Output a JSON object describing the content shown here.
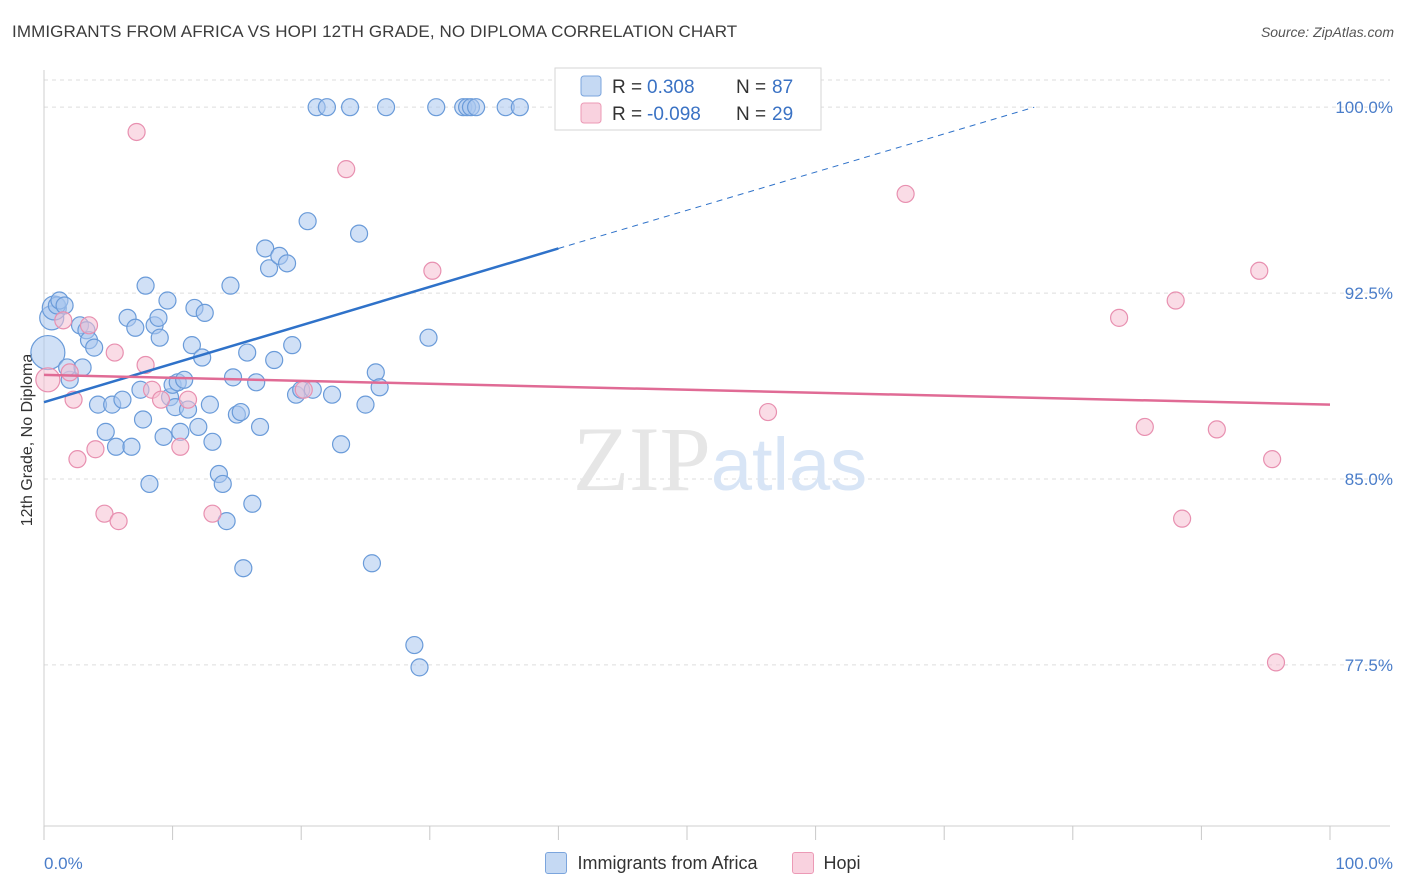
{
  "header": {
    "title": "IMMIGRANTS FROM AFRICA VS HOPI 12TH GRADE, NO DIPLOMA CORRELATION CHART",
    "source": "Source: ZipAtlas.com"
  },
  "watermark": {
    "part1": "ZIP",
    "part2": "atlas"
  },
  "legend_top": {
    "rows": [
      {
        "r_label": "R =",
        "r_value": "0.308",
        "n_label": "N =",
        "n_value": "87",
        "color": "#5b8fd6"
      },
      {
        "r_label": "R =",
        "r_value": "-0.098",
        "n_label": "N =",
        "n_value": "29",
        "color": "#ea80a6"
      }
    ]
  },
  "legend_bottom": {
    "items": [
      {
        "label": "Immigrants from Africa",
        "color": "#5b8fd6"
      },
      {
        "label": "Hopi",
        "color": "#ea80a6"
      }
    ]
  },
  "colors": {
    "blue_fill": "#a9c6ee",
    "blue_stroke": "#6a9bd9",
    "blue_line": "#2f72c9",
    "pink_fill": "#f6c0d2",
    "pink_stroke": "#e890b0",
    "pink_line": "#e06b95",
    "tick_label": "#4a7dc9",
    "grid": "#dddddd"
  },
  "chart_data": {
    "type": "scatter",
    "title": "IMMIGRANTS FROM AFRICA VS HOPI 12TH GRADE, NO DIPLOMA CORRELATION CHART",
    "ylabel": "12th Grade, No Diploma",
    "xlabel": "",
    "xlim": [
      0,
      100
    ],
    "ylim": [
      71.0,
      101.5
    ],
    "x_tick_labels": [
      {
        "value": 0,
        "label": "0.0%"
      },
      {
        "value": 100,
        "label": "100.0%"
      }
    ],
    "y_ticks": [
      {
        "value": 100.0,
        "label": "100.0%"
      },
      {
        "value": 92.5,
        "label": "92.5%"
      },
      {
        "value": 85.0,
        "label": "85.0%"
      },
      {
        "value": 77.5,
        "label": "77.5%"
      }
    ],
    "grid": true,
    "legend_position": "top-center",
    "series": [
      {
        "name": "Immigrants from Africa",
        "r": 0.308,
        "n": 87,
        "trend": {
          "x0": 0,
          "y0": 88.1,
          "x1": 40,
          "y1": 94.3,
          "dashed_to_x": 77,
          "dashed_to_y": 100.0
        },
        "points": [
          [
            0.3,
            90.1,
            3
          ],
          [
            0.6,
            91.5,
            2
          ],
          [
            0.8,
            91.9,
            2
          ],
          [
            1.0,
            92.0,
            1
          ],
          [
            1.2,
            92.2,
            1
          ],
          [
            1.6,
            92.0,
            1
          ],
          [
            2.0,
            89.0,
            1
          ],
          [
            1.8,
            89.5,
            1
          ],
          [
            2.8,
            91.2,
            1
          ],
          [
            3.0,
            89.5,
            1
          ],
          [
            3.3,
            91.0,
            1
          ],
          [
            3.5,
            90.6,
            1
          ],
          [
            3.9,
            90.3,
            1
          ],
          [
            4.2,
            88.0,
            1
          ],
          [
            4.8,
            86.9,
            1
          ],
          [
            5.3,
            88.0,
            1
          ],
          [
            5.6,
            86.3,
            1
          ],
          [
            6.1,
            88.2,
            1
          ],
          [
            6.5,
            91.5,
            1
          ],
          [
            6.8,
            86.3,
            1
          ],
          [
            7.1,
            91.1,
            1
          ],
          [
            7.5,
            88.6,
            1
          ],
          [
            7.7,
            87.4,
            1
          ],
          [
            7.9,
            92.8,
            1
          ],
          [
            8.2,
            84.8,
            1
          ],
          [
            8.6,
            91.2,
            1
          ],
          [
            8.9,
            91.5,
            1
          ],
          [
            9.0,
            90.7,
            1
          ],
          [
            9.3,
            86.7,
            1
          ],
          [
            9.6,
            92.2,
            1
          ],
          [
            9.8,
            88.3,
            1
          ],
          [
            10.0,
            88.8,
            1
          ],
          [
            10.2,
            87.9,
            1
          ],
          [
            10.4,
            88.9,
            1
          ],
          [
            10.6,
            86.9,
            1
          ],
          [
            10.9,
            89.0,
            1
          ],
          [
            11.2,
            87.8,
            1
          ],
          [
            11.5,
            90.4,
            1
          ],
          [
            11.7,
            91.9,
            1
          ],
          [
            12.0,
            87.1,
            1
          ],
          [
            12.3,
            89.9,
            1
          ],
          [
            12.5,
            91.7,
            1
          ],
          [
            12.9,
            88.0,
            1
          ],
          [
            13.1,
            86.5,
            1
          ],
          [
            13.6,
            85.2,
            1
          ],
          [
            13.9,
            84.8,
            1
          ],
          [
            14.2,
            83.3,
            1
          ],
          [
            14.5,
            92.8,
            1
          ],
          [
            14.7,
            89.1,
            1
          ],
          [
            15.0,
            87.6,
            1
          ],
          [
            15.3,
            87.7,
            1
          ],
          [
            15.5,
            81.4,
            1
          ],
          [
            15.8,
            90.1,
            1
          ],
          [
            16.2,
            84.0,
            1
          ],
          [
            16.5,
            88.9,
            1
          ],
          [
            16.8,
            87.1,
            1
          ],
          [
            17.2,
            94.3,
            1
          ],
          [
            17.5,
            93.5,
            1
          ],
          [
            17.9,
            89.8,
            1
          ],
          [
            18.3,
            94.0,
            1
          ],
          [
            18.9,
            93.7,
            1
          ],
          [
            19.3,
            90.4,
            1
          ],
          [
            19.6,
            88.4,
            1
          ],
          [
            20.0,
            88.6,
            1
          ],
          [
            20.5,
            95.4,
            1
          ],
          [
            20.9,
            88.6,
            1
          ],
          [
            21.2,
            100.0,
            1
          ],
          [
            22.0,
            100.0,
            1
          ],
          [
            22.4,
            88.4,
            1
          ],
          [
            23.1,
            86.4,
            1
          ],
          [
            23.8,
            100.0,
            1
          ],
          [
            24.5,
            94.9,
            1
          ],
          [
            25.0,
            88.0,
            1
          ],
          [
            25.5,
            81.6,
            1
          ],
          [
            25.8,
            89.3,
            1
          ],
          [
            26.1,
            88.7,
            1
          ],
          [
            26.6,
            100.0,
            1
          ],
          [
            28.8,
            78.3,
            1
          ],
          [
            29.2,
            77.4,
            1
          ],
          [
            29.9,
            90.7,
            1
          ],
          [
            30.5,
            100.0,
            1
          ],
          [
            32.6,
            100.0,
            1
          ],
          [
            32.9,
            100.0,
            1
          ],
          [
            33.2,
            100.0,
            1
          ],
          [
            33.6,
            100.0,
            1
          ],
          [
            35.9,
            100.0,
            1
          ],
          [
            37.0,
            100.0,
            1
          ]
        ]
      },
      {
        "name": "Hopi",
        "r": -0.098,
        "n": 29,
        "trend": {
          "x0": 0,
          "y0": 89.2,
          "x1": 100,
          "y1": 88.0
        },
        "points": [
          [
            0.3,
            89.0,
            2
          ],
          [
            1.5,
            91.4,
            1
          ],
          [
            2.0,
            89.3,
            1
          ],
          [
            2.3,
            88.2,
            1
          ],
          [
            2.6,
            85.8,
            1
          ],
          [
            3.5,
            91.2,
            1
          ],
          [
            4.0,
            86.2,
            1
          ],
          [
            4.7,
            83.6,
            1
          ],
          [
            5.5,
            90.1,
            1
          ],
          [
            5.8,
            83.3,
            1
          ],
          [
            7.2,
            99.0,
            1
          ],
          [
            7.9,
            89.6,
            1
          ],
          [
            8.4,
            88.6,
            1
          ],
          [
            9.1,
            88.2,
            1
          ],
          [
            10.6,
            86.3,
            1
          ],
          [
            11.2,
            88.2,
            1
          ],
          [
            13.1,
            83.6,
            1
          ],
          [
            20.2,
            88.6,
            1
          ],
          [
            23.5,
            97.5,
            1
          ],
          [
            30.2,
            93.4,
            1
          ],
          [
            56.3,
            87.7,
            1
          ],
          [
            67.0,
            96.5,
            1
          ],
          [
            83.6,
            91.5,
            1
          ],
          [
            85.6,
            87.1,
            1
          ],
          [
            88.0,
            92.2,
            1
          ],
          [
            88.5,
            83.4,
            1
          ],
          [
            91.2,
            87.0,
            1
          ],
          [
            94.5,
            93.4,
            1
          ],
          [
            95.5,
            85.8,
            1
          ],
          [
            95.8,
            77.6,
            1
          ]
        ]
      }
    ]
  }
}
